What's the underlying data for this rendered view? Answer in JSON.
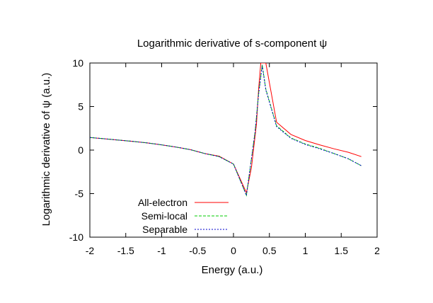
{
  "chart_data": {
    "type": "line",
    "title": "Logarithmic derivative of s-component ψ",
    "xlabel": "Energy (a.u.)",
    "ylabel": "Logarithmic derivative of ψ (a.u.)",
    "xlim": [
      -2,
      2
    ],
    "ylim": [
      -10,
      10
    ],
    "xticks": [
      -2,
      -1.5,
      -1,
      -0.5,
      0,
      0.5,
      1,
      1.5,
      2
    ],
    "yticks": [
      -10,
      -5,
      0,
      5,
      10
    ],
    "xtick_labels": [
      "-2",
      "-1.5",
      "-1",
      "-0.5",
      "0",
      "0.5",
      "1",
      "1.5",
      "2"
    ],
    "ytick_labels": [
      "-10",
      "-5",
      "0",
      "5",
      "10"
    ],
    "grid": false,
    "legend_position": "bottom-left",
    "series": [
      {
        "name": "All-electron",
        "color": "#ff0000",
        "dash": "solid",
        "x": [
          -2.0,
          -1.8,
          -1.6,
          -1.4,
          -1.2,
          -1.0,
          -0.8,
          -0.6,
          -0.4,
          -0.2,
          0.0,
          0.18,
          0.25,
          0.32,
          0.35,
          0.38,
          0.4,
          0.42,
          0.45,
          0.6,
          0.8,
          1.0,
          1.2,
          1.4,
          1.6,
          1.78
        ],
        "y": [
          1.45,
          1.3,
          1.15,
          1.0,
          0.82,
          0.6,
          0.35,
          0.05,
          -0.4,
          -0.7,
          -1.6,
          -4.9,
          -2.0,
          3.0,
          7.0,
          10.0,
          10.0,
          10.0,
          10.0,
          3.2,
          1.8,
          1.1,
          0.6,
          0.15,
          -0.25,
          -0.75
        ]
      },
      {
        "name": "Semi-local",
        "color": "#00cc00",
        "dash": "dashed",
        "x": [
          -2.0,
          -1.8,
          -1.6,
          -1.4,
          -1.2,
          -1.0,
          -0.8,
          -0.6,
          -0.4,
          -0.2,
          0.0,
          0.18,
          0.3,
          0.35,
          0.4,
          0.45,
          0.6,
          0.8,
          1.0,
          1.2,
          1.4,
          1.6,
          1.78
        ],
        "y": [
          1.45,
          1.3,
          1.15,
          1.0,
          0.82,
          0.6,
          0.35,
          0.05,
          -0.4,
          -0.75,
          -1.6,
          -5.2,
          2.0,
          6.5,
          9.8,
          7.0,
          2.8,
          1.4,
          0.7,
          0.2,
          -0.4,
          -1.0,
          -1.8
        ]
      },
      {
        "name": "Separable",
        "color": "#0000cc",
        "dash": "dotted",
        "x": [
          -2.0,
          -1.8,
          -1.6,
          -1.4,
          -1.2,
          -1.0,
          -0.8,
          -0.6,
          -0.4,
          -0.2,
          0.0,
          0.18,
          0.3,
          0.35,
          0.4,
          0.45,
          0.6,
          0.8,
          1.0,
          1.2,
          1.4,
          1.6,
          1.78
        ],
        "y": [
          1.45,
          1.3,
          1.15,
          1.0,
          0.82,
          0.6,
          0.35,
          0.05,
          -0.4,
          -0.75,
          -1.6,
          -5.2,
          2.0,
          6.4,
          9.7,
          6.9,
          2.7,
          1.35,
          0.65,
          0.15,
          -0.4,
          -1.0,
          -1.8
        ]
      }
    ]
  }
}
